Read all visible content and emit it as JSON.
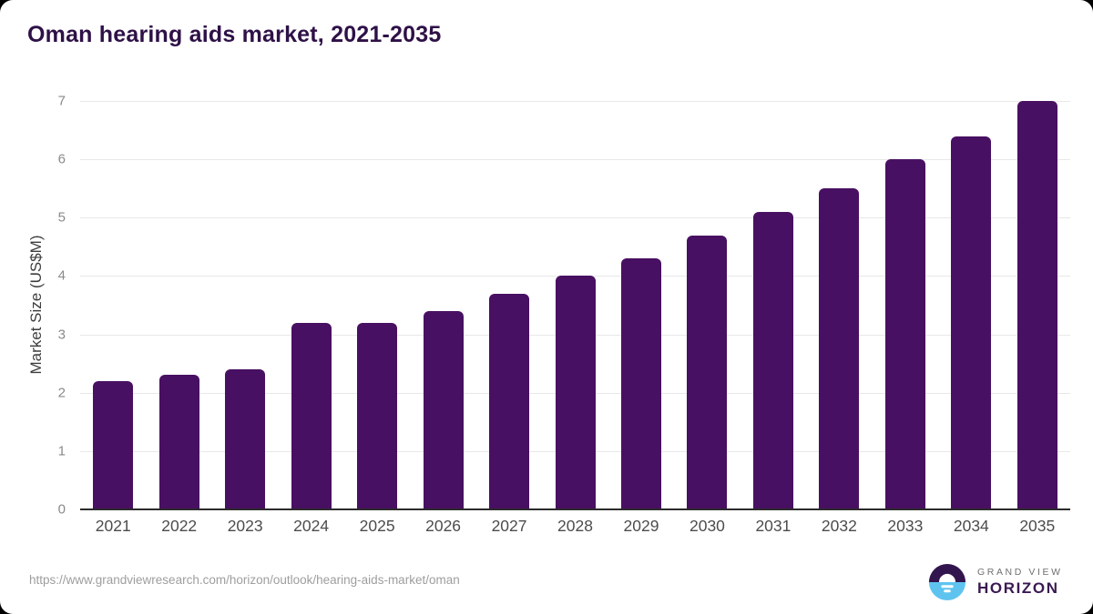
{
  "page": {
    "title": "Oman hearing aids market, 2021-2035",
    "source_url": "https://www.grandviewresearch.com/horizon/outlook/hearing-aids-market/oman"
  },
  "logo": {
    "line1": "GRAND VIEW",
    "line2": "HORIZON",
    "circle_top_color": "#33154e",
    "circle_bottom_color": "#5ec4ef"
  },
  "chart_data": {
    "type": "bar",
    "title": "Oman hearing aids market, 2021-2035",
    "categories": [
      "2021",
      "2022",
      "2023",
      "2024",
      "2025",
      "2026",
      "2027",
      "2028",
      "2029",
      "2030",
      "2031",
      "2032",
      "2033",
      "2034",
      "2035"
    ],
    "values": [
      2.2,
      2.3,
      2.4,
      3.2,
      3.2,
      3.4,
      3.7,
      4.0,
      4.3,
      4.7,
      5.1,
      5.5,
      6.0,
      6.4,
      7.0
    ],
    "xlabel": "",
    "ylabel": "Market Size (US$M)",
    "ylim": [
      0,
      7
    ],
    "yticks": [
      0,
      1,
      2,
      3,
      4,
      5,
      6,
      7
    ],
    "grid": true,
    "legend": false,
    "bar_color": "#481062"
  },
  "colors": {
    "background": "#ffffff",
    "frame": "#000000",
    "title": "#2e1147",
    "bar": "#481062",
    "gridline": "#e8e8e8",
    "axis_line": "#2b2b2b",
    "y_tick_label": "#8a8a8a",
    "x_tick_label": "#4c4c4c",
    "axis_title": "#3d3d3d",
    "source_url": "#9e9e9e"
  }
}
